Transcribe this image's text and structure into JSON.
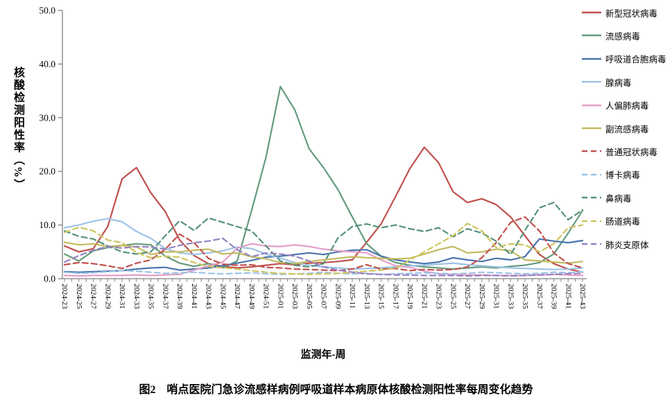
{
  "figure": {
    "y_axis_title": "核酸检测阳性率（%）",
    "x_axis_title": "监测年-周",
    "caption": "图2　哨点医院门急诊流感样病例呼吸道样本病原体核酸检测阳性率每周变化趋势",
    "axis_color": "#808080",
    "y_tick_labels": [
      "50.0",
      "40.0",
      "30.0",
      "20.0",
      "10.0",
      "0.0"
    ]
  },
  "chart_data": {
    "type": "line",
    "title": "",
    "xlabel": "监测年-周",
    "ylabel": "核酸检测阳性率（%）",
    "ylim": [
      0,
      50
    ],
    "y_tick_step": 10,
    "grid": false,
    "legend_position": "right",
    "x_label_rotation": 90,
    "categories": [
      "2024-23",
      "2024-25",
      "2024-27",
      "2024-29",
      "2024-31",
      "2024-33",
      "2024-35",
      "2024-37",
      "2024-39",
      "2024-41",
      "2024-43",
      "2024-45",
      "2024-47",
      "2024-49",
      "2024-51",
      "2025-01",
      "2025-03",
      "2025-05",
      "2025-07",
      "2025-09",
      "2025-11",
      "2025-13",
      "2025-15",
      "2025-17",
      "2025-19",
      "2025-21",
      "2025-23",
      "2025-25",
      "2025-27",
      "2025-29",
      "2025-31",
      "2025-33",
      "2025-35",
      "2025-37",
      "2025-39",
      "2025-41",
      "2025-43"
    ],
    "series": [
      {
        "name": "新型冠状病毒",
        "color": "#c0504d",
        "dash": "solid",
        "values": [
          6.1,
          5.0,
          5.6,
          9.7,
          18.6,
          20.7,
          16.0,
          12.5,
          7.2,
          4.3,
          2.8,
          2.3,
          2.0,
          2.2,
          2.5,
          2.8,
          2.6,
          2.9,
          3.0,
          3.2,
          3.5,
          6.8,
          10.2,
          15.3,
          20.5,
          24.5,
          21.6,
          16.2,
          14.2,
          14.9,
          13.8,
          11.5,
          8.0,
          4.5,
          2.8,
          1.8,
          1.2
        ]
      },
      {
        "name": "流感病毒",
        "color": "#639b7d",
        "dash": "solid",
        "values": [
          4.6,
          3.3,
          5.2,
          5.8,
          6.2,
          6.5,
          6.3,
          4.2,
          2.9,
          2.3,
          2.8,
          2.0,
          3.3,
          12.7,
          22.6,
          35.8,
          31.5,
          24.2,
          20.7,
          16.6,
          11.5,
          6.5,
          4.2,
          3.0,
          2.5,
          2.2,
          2.0,
          1.8,
          2.0,
          2.2,
          2.0,
          2.3,
          2.5,
          3.0,
          4.6,
          8.5,
          12.7
        ]
      },
      {
        "name": "呼吸道合胞病毒",
        "color": "#4a74ad",
        "dash": "solid",
        "values": [
          1.3,
          1.2,
          1.3,
          1.4,
          1.5,
          1.8,
          2.0,
          2.1,
          1.6,
          1.8,
          2.0,
          2.4,
          2.9,
          3.4,
          4.0,
          4.2,
          4.5,
          4.8,
          4.5,
          5.0,
          5.3,
          5.4,
          4.2,
          3.5,
          3.1,
          2.8,
          3.1,
          3.9,
          3.5,
          3.2,
          3.8,
          3.5,
          4.1,
          7.4,
          7.0,
          6.7,
          7.1
        ]
      },
      {
        "name": "腺病毒",
        "color": "#9dc3e6",
        "dash": "solid",
        "values": [
          9.5,
          10.0,
          10.7,
          11.2,
          10.6,
          8.8,
          7.5,
          5.6,
          4.8,
          4.5,
          4.8,
          5.2,
          5.9,
          5.6,
          4.6,
          3.8,
          3.0,
          2.5,
          2.2,
          2.0,
          1.8,
          1.9,
          2.0,
          2.2,
          2.4,
          2.5,
          2.7,
          2.9,
          2.6,
          2.4,
          2.2,
          2.0,
          1.9,
          1.8,
          1.7,
          1.8,
          2.0
        ]
      },
      {
        "name": "人偏肺病毒",
        "color": "#e49ec7",
        "dash": "solid",
        "values": [
          0.6,
          0.5,
          0.6,
          0.6,
          0.6,
          0.7,
          0.6,
          0.7,
          0.8,
          1.6,
          2.4,
          3.1,
          5.7,
          6.5,
          6.1,
          6.0,
          6.3,
          6.0,
          5.5,
          5.2,
          5.0,
          4.8,
          3.5,
          2.4,
          2.1,
          1.4,
          0.9,
          0.8,
          0.7,
          0.7,
          0.6,
          0.6,
          0.6,
          0.7,
          0.8,
          0.7,
          0.6
        ]
      },
      {
        "name": "副流感病毒",
        "color": "#c3ba5e",
        "dash": "solid",
        "values": [
          6.8,
          6.3,
          6.5,
          6.0,
          6.2,
          5.9,
          4.5,
          5.0,
          5.0,
          5.3,
          5.5,
          4.6,
          4.8,
          4.1,
          3.7,
          3.0,
          2.8,
          3.2,
          3.5,
          3.8,
          4.1,
          3.9,
          3.8,
          3.7,
          3.8,
          4.6,
          5.4,
          6.0,
          4.8,
          5.0,
          5.5,
          5.2,
          3.5,
          3.3,
          3.1,
          2.9,
          3.2
        ]
      },
      {
        "name": "普通冠状病毒",
        "color": "#c0504d",
        "dash": "dashed",
        "values": [
          2.6,
          3.0,
          2.8,
          2.4,
          1.9,
          2.9,
          3.5,
          5.5,
          8.3,
          6.7,
          3.8,
          2.7,
          2.5,
          2.6,
          2.1,
          2.0,
          1.8,
          1.7,
          1.6,
          1.5,
          1.8,
          2.6,
          1.8,
          1.9,
          1.5,
          1.7,
          1.6,
          1.7,
          2.2,
          3.9,
          6.7,
          10.5,
          11.5,
          8.9,
          4.8,
          2.8,
          2.0
        ]
      },
      {
        "name": "博卡病毒",
        "color": "#9dc3e6",
        "dash": "dashed",
        "values": [
          1.2,
          1.0,
          1.1,
          1.3,
          1.5,
          1.4,
          1.2,
          1.0,
          1.1,
          1.2,
          1.0,
          0.9,
          1.0,
          1.1,
          0.9,
          0.8,
          0.9,
          1.0,
          1.2,
          1.0,
          0.9,
          1.0,
          0.8,
          0.9,
          1.0,
          1.1,
          1.0,
          0.9,
          1.0,
          1.2,
          1.1,
          1.0,
          0.9,
          1.0,
          1.2,
          1.1,
          1.3
        ]
      },
      {
        "name": "鼻病毒",
        "color": "#55917a",
        "dash": "dashed",
        "values": [
          8.9,
          7.9,
          7.4,
          6.1,
          5.0,
          4.6,
          5.0,
          8.0,
          10.8,
          9.0,
          11.3,
          10.5,
          9.7,
          8.9,
          6.1,
          3.3,
          2.5,
          2.2,
          2.8,
          7.6,
          9.7,
          10.2,
          9.5,
          10.0,
          9.3,
          8.8,
          9.5,
          7.8,
          9.3,
          8.5,
          7.0,
          4.5,
          9.0,
          13.2,
          14.2,
          11.0,
          12.8
        ]
      },
      {
        "name": "肠道病毒",
        "color": "#cfc55f",
        "dash": "dashed",
        "values": [
          8.6,
          9.6,
          8.9,
          7.2,
          6.7,
          4.9,
          3.9,
          4.2,
          4.0,
          3.0,
          2.3,
          2.0,
          1.8,
          1.5,
          1.2,
          1.0,
          0.9,
          0.8,
          0.9,
          1.0,
          1.2,
          1.4,
          1.6,
          1.9,
          3.5,
          5.0,
          6.5,
          8.0,
          10.3,
          8.9,
          5.8,
          6.5,
          6.3,
          5.0,
          6.5,
          9.5,
          10.0
        ]
      },
      {
        "name": "肺炎支原体",
        "color": "#9581c2",
        "dash": "dashed",
        "values": [
          3.1,
          4.3,
          5.3,
          6.0,
          5.7,
          6.0,
          5.9,
          5.5,
          6.2,
          6.7,
          7.0,
          7.5,
          5.4,
          4.1,
          4.8,
          4.6,
          4.2,
          3.3,
          2.2,
          1.6,
          1.2,
          0.9,
          0.8,
          0.7,
          0.7,
          0.6,
          0.6,
          0.6,
          0.5,
          0.6,
          0.6,
          0.5,
          0.6,
          0.7,
          0.8,
          0.9,
          1.0
        ]
      }
    ]
  }
}
